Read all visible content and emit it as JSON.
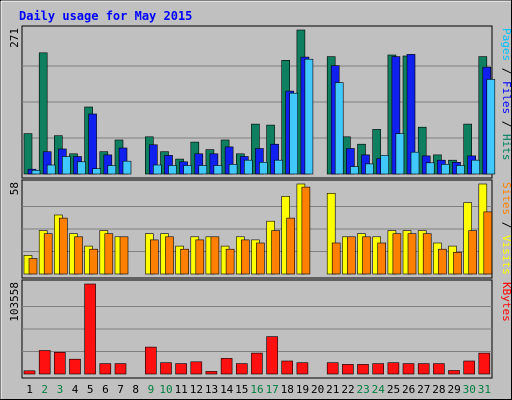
{
  "chart_data": {
    "type": "bar",
    "title": "Daily usage for May 2015",
    "categories": [
      "1",
      "2",
      "3",
      "4",
      "5",
      "6",
      "7",
      "8",
      "9",
      "10",
      "11",
      "12",
      "13",
      "14",
      "15",
      "16",
      "17",
      "18",
      "19",
      "20",
      "21",
      "22",
      "23",
      "24",
      "25",
      "26",
      "27",
      "28",
      "29",
      "30",
      "31"
    ],
    "weekend_days": [
      "2",
      "3",
      "9",
      "10",
      "16",
      "17",
      "23",
      "24",
      "30",
      "31"
    ],
    "panels": [
      {
        "id": "hits",
        "ylabel_parts": [
          {
            "text": "Pages",
            "color": "#00c0ff"
          },
          {
            "text": " / ",
            "color": "#000000"
          },
          {
            "text": "Files",
            "color": "#0000ff"
          },
          {
            "text": " / ",
            "color": "#000000"
          },
          {
            "text": "Hits",
            "color": "#008060"
          }
        ],
        "max_label": "271",
        "ylim": [
          0,
          271
        ],
        "series": [
          {
            "name": "Hits",
            "color": "#0e8060",
            "values": [
              76,
              228,
              72,
              38,
              126,
              42,
              64,
              0,
              70,
              42,
              28,
              60,
              46,
              64,
              38,
              94,
              92,
              214,
              271,
              0,
              221,
              70,
              56,
              84,
              224,
              222,
              88,
              36,
              26,
              94,
              221
            ]
          },
          {
            "name": "Files",
            "color": "#1020ee",
            "values": [
              9,
              42,
              47,
              33,
              113,
              36,
              49,
              0,
              55,
              35,
              23,
              38,
              38,
              51,
              33,
              48,
              56,
              156,
              220,
              0,
              204,
              48,
              36,
              29,
              221,
              225,
              34,
              26,
              22,
              34,
              201
            ]
          },
          {
            "name": "Pages",
            "color": "#40c8ff",
            "values": [
              7,
              17,
              33,
              23,
              10,
              16,
              24,
              0,
              17,
              16,
              16,
              16,
              16,
              18,
              26,
              22,
              26,
              152,
              216,
              0,
              172,
              14,
              19,
              35,
              76,
              41,
              21,
              18,
              16,
              26,
              178
            ]
          }
        ]
      },
      {
        "id": "visits",
        "ylabel_parts": [
          {
            "text": "Sites",
            "color": "#ff8000"
          },
          {
            "text": " / ",
            "color": "#000000"
          },
          {
            "text": "Visits",
            "color": "#ffff00"
          }
        ],
        "max_label": "58",
        "ylim": [
          0,
          58
        ],
        "series": [
          {
            "name": "Visits",
            "color": "#ffff00",
            "values": [
              12,
              28,
              38,
              26,
              18,
              28,
              24,
              0,
              26,
              26,
              18,
              24,
              24,
              18,
              24,
              22,
              34,
              50,
              58,
              0,
              52,
              24,
              26,
              24,
              28,
              28,
              28,
              20,
              18,
              46,
              58
            ]
          },
          {
            "name": "Sites",
            "color": "#ff8000",
            "values": [
              10,
              26,
              36,
              24,
              16,
              26,
              24,
              0,
              22,
              24,
              16,
              22,
              24,
              16,
              22,
              20,
              28,
              36,
              56,
              0,
              20,
              24,
              24,
              20,
              26,
              26,
              26,
              16,
              14,
              28,
              40
            ]
          }
        ]
      },
      {
        "id": "kbytes",
        "ylabel_parts": [
          {
            "text": "KBytes",
            "color": "#ff0000"
          }
        ],
        "max_label": "103558",
        "ylim": [
          0,
          103558
        ],
        "series": [
          {
            "name": "KBytes",
            "color": "#ff1010",
            "values": [
              3700,
              27000,
              25000,
              17000,
              103558,
              12000,
              12000,
              0,
              31000,
              13000,
              12000,
              14000,
              3000,
              18000,
              12000,
              24000,
              43000,
              15000,
              13000,
              0,
              13000,
              11000,
              11000,
              12000,
              13000,
              12000,
              12000,
              12000,
              4000,
              15000,
              24000
            ]
          }
        ]
      }
    ],
    "grid": true,
    "legend": "right-vertical"
  },
  "colors": {
    "background": "#c0c0c0",
    "plot_bg": "#c0c0c0",
    "title": "#0000ff",
    "weekday_label": "#000000",
    "weekend_label": "#008040"
  }
}
